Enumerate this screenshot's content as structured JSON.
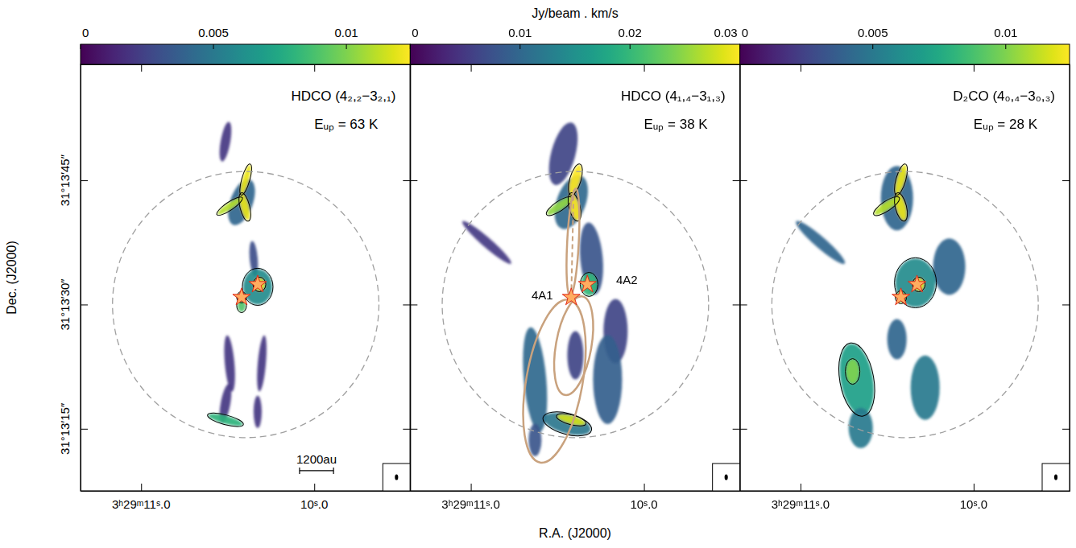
{
  "chart_data": {
    "type": "map",
    "colorbar_label": "Jy/beam . km/s",
    "xlabel": "R.A. (J2000)",
    "ylabel": "Dec. (J2000)",
    "xlim": [
      11.35,
      9.446
    ],
    "ylim": [
      7.5,
      59.0
    ],
    "xticks": [
      {
        "value": 11.0,
        "label": "3ʰ29ᵐ11ˢ.0"
      },
      {
        "value": 10.0,
        "label": "10ˢ.0"
      }
    ],
    "yticks": [
      {
        "value": 15,
        "label": "31°13′15″"
      },
      {
        "value": 30,
        "label": "31°13′30″"
      },
      {
        "value": 45,
        "label": "31°13′45″"
      }
    ],
    "field_circle": {
      "ra": 10.396,
      "dec": 30.0,
      "radius": 16.07
    },
    "sources": [
      {
        "name": "4A1",
        "ra": 10.42,
        "dec": 30.88
      },
      {
        "name": "4A2",
        "ra": 10.327,
        "dec": 32.43
      }
    ],
    "beam": {
      "major": 0.35,
      "minor": 0.2
    },
    "panels": [
      {
        "title": "HDCO (4₂,₂−3₂,₁)",
        "energy": "Eᵤₚ = 63 K",
        "colorbar": {
          "range": [
            0,
            0.0124
          ],
          "ticks": [
            0,
            0.005,
            0.01
          ]
        },
        "contour_level": 0.006,
        "scalebar": {
          "label": "1200au",
          "length": 4.1,
          "ra": 9.987,
          "dec": 9.94
        },
        "emission": [
          {
            "ra": 10.513,
            "dec": 49.67,
            "a": 2.43,
            "b": 0.58,
            "pa": -10,
            "value": 0.002
          },
          {
            "ra": 10.42,
            "dec": 42.37,
            "a": 2.92,
            "b": 1.36,
            "pa": -20,
            "value": 0.004
          },
          {
            "ra": 10.396,
            "dec": 45.09,
            "a": 1.85,
            "b": 0.39,
            "pa": -16,
            "value": 0.012
          },
          {
            "ra": 10.401,
            "dec": 41.78,
            "a": 1.66,
            "b": 0.49,
            "pa": 14,
            "value": 0.012
          },
          {
            "ra": 10.489,
            "dec": 41.88,
            "a": 1.75,
            "b": 0.39,
            "pa": -56,
            "value": 0.011
          },
          {
            "ra": 10.35,
            "dec": 35.55,
            "a": 2.14,
            "b": 0.49,
            "pa": 5,
            "value": 0.003
          },
          {
            "ra": 10.327,
            "dec": 32.14,
            "a": 2.14,
            "b": 1.75,
            "pa": 0,
            "value": 0.006
          },
          {
            "ra": 10.317,
            "dec": 32.43,
            "a": 0.78,
            "b": 0.68,
            "pa": 0,
            "value": 0.012
          },
          {
            "ra": 10.42,
            "dec": 30.88,
            "a": 0.58,
            "b": 0.49,
            "pa": 0,
            "value": 0.01
          },
          {
            "ra": 10.42,
            "dec": 29.9,
            "a": 0.78,
            "b": 0.49,
            "pa": 0,
            "value": 0.009
          },
          {
            "ra": 10.489,
            "dec": 22.89,
            "a": 3.41,
            "b": 0.58,
            "pa": 5,
            "value": 0.002
          },
          {
            "ra": 10.513,
            "dec": 18.02,
            "a": 2.43,
            "b": 0.58,
            "pa": -10,
            "value": 0.002
          },
          {
            "ra": 10.303,
            "dec": 22.89,
            "a": 3.41,
            "b": 0.49,
            "pa": -5,
            "value": 0.002
          },
          {
            "ra": 10.327,
            "dec": 17.05,
            "a": 1.95,
            "b": 0.49,
            "pa": 0,
            "value": 0.002
          },
          {
            "ra": 10.513,
            "dec": 16.08,
            "a": 2.14,
            "b": 0.49,
            "pa": 75,
            "value": 0.008
          }
        ]
      },
      {
        "title": "HDCO (4₁,₄−3₁,₃)",
        "energy": "Eᵤₚ = 38 K",
        "colorbar": {
          "range": [
            0,
            0.03
          ],
          "ticks": [
            0,
            0.01,
            0.02,
            0.03
          ]
        },
        "contour_level": 0.012,
        "annotations": [
          {
            "text": "4A1",
            "ra": 10.587,
            "dec": 31.07
          },
          {
            "text": "4A2",
            "ra": 10.099,
            "dec": 33.0
          }
        ],
        "outflow_ellipses": [
          {
            "ra": 10.517,
            "dec": 20.75,
            "a": 9.98,
            "b": 3.4,
            "pa": -10
          },
          {
            "ra": 10.406,
            "dec": 25.03,
            "a": 6.04,
            "b": 2.14,
            "pa": -10
          },
          {
            "ra": 10.41,
            "dec": 37.5,
            "a": 6.5,
            "b": 0.7,
            "pa": -3
          }
        ],
        "outflow_axis": [
          {
            "ra": 10.42,
            "dec": 30.88
          },
          {
            "ra": 10.406,
            "dec": 43.83
          }
        ],
        "emission": [
          {
            "ra": 10.466,
            "dec": 48.21,
            "a": 3.89,
            "b": 1.46,
            "pa": -15,
            "value": 0.006
          },
          {
            "ra": 10.42,
            "dec": 42.37,
            "a": 3.41,
            "b": 1.75,
            "pa": -20,
            "value": 0.01
          },
          {
            "ra": 10.396,
            "dec": 45.09,
            "a": 1.85,
            "b": 0.58,
            "pa": -16,
            "value": 0.03
          },
          {
            "ra": 10.401,
            "dec": 41.78,
            "a": 1.66,
            "b": 0.58,
            "pa": 14,
            "value": 0.03
          },
          {
            "ra": 10.489,
            "dec": 41.88,
            "a": 1.75,
            "b": 0.49,
            "pa": -56,
            "value": 0.025
          },
          {
            "ra": 10.303,
            "dec": 35.55,
            "a": 4.38,
            "b": 1.36,
            "pa": 5,
            "value": 0.008
          },
          {
            "ra": 10.908,
            "dec": 37.5,
            "a": 3.89,
            "b": 0.58,
            "pa": 49,
            "value": 0.005
          },
          {
            "ra": 10.317,
            "dec": 32.43,
            "a": 1.36,
            "b": 0.97,
            "pa": 0,
            "value": 0.02
          },
          {
            "ra": 10.164,
            "dec": 26.79,
            "a": 3.89,
            "b": 1.46,
            "pa": 0,
            "value": 0.006
          },
          {
            "ra": 10.629,
            "dec": 20.94,
            "a": 6.33,
            "b": 1.36,
            "pa": 5,
            "value": 0.01
          },
          {
            "ra": 10.21,
            "dec": 20.94,
            "a": 5.36,
            "b": 1.75,
            "pa": 0,
            "value": 0.009
          },
          {
            "ra": 10.396,
            "dec": 23.87,
            "a": 2.92,
            "b": 0.97,
            "pa": 0,
            "value": 0.006
          },
          {
            "ra": 10.443,
            "dec": 15.59,
            "a": 2.92,
            "b": 1.17,
            "pa": 75,
            "value": 0.012
          },
          {
            "ra": 10.42,
            "dec": 16.08,
            "a": 1.75,
            "b": 0.49,
            "pa": 75,
            "value": 0.028
          },
          {
            "ra": 10.629,
            "dec": 13.64,
            "a": 1.95,
            "b": 0.78,
            "pa": 0,
            "value": 0.008
          }
        ]
      },
      {
        "title": "D₂CO (4₀,₄−3₀,₃)",
        "energy": "Eᵤₚ = 28 K",
        "colorbar": {
          "range": [
            0,
            0.0124
          ],
          "ticks": [
            0,
            0.005,
            0.01
          ]
        },
        "contour_level": 0.006,
        "emission": [
          {
            "ra": 10.443,
            "dec": 42.85,
            "a": 3.89,
            "b": 1.95,
            "pa": 0,
            "value": 0.004
          },
          {
            "ra": 10.42,
            "dec": 45.09,
            "a": 1.85,
            "b": 0.49,
            "pa": -16,
            "value": 0.012
          },
          {
            "ra": 10.42,
            "dec": 41.78,
            "a": 1.66,
            "b": 0.58,
            "pa": 14,
            "value": 0.012
          },
          {
            "ra": 10.503,
            "dec": 41.88,
            "a": 1.75,
            "b": 0.49,
            "pa": -56,
            "value": 0.011
          },
          {
            "ra": 10.885,
            "dec": 37.5,
            "a": 3.89,
            "b": 0.68,
            "pa": 49,
            "value": 0.004
          },
          {
            "ra": 10.141,
            "dec": 34.58,
            "a": 3.41,
            "b": 1.95,
            "pa": 0,
            "value": 0.004
          },
          {
            "ra": 10.336,
            "dec": 32.63,
            "a": 2.92,
            "b": 2.43,
            "pa": 0,
            "value": 0.006
          },
          {
            "ra": 10.317,
            "dec": 32.43,
            "a": 0.78,
            "b": 0.68,
            "pa": 0,
            "value": 0.012
          },
          {
            "ra": 10.42,
            "dec": 30.88,
            "a": 0.68,
            "b": 0.58,
            "pa": 0,
            "value": 0.01
          },
          {
            "ra": 10.675,
            "dec": 20.94,
            "a": 4.38,
            "b": 1.95,
            "pa": 10,
            "value": 0.007
          },
          {
            "ra": 10.699,
            "dec": 21.92,
            "a": 1.46,
            "b": 0.78,
            "pa": 0,
            "value": 0.01
          },
          {
            "ra": 10.652,
            "dec": 15.1,
            "a": 2.43,
            "b": 1.46,
            "pa": 0,
            "value": 0.005
          },
          {
            "ra": 10.28,
            "dec": 19.97,
            "a": 3.89,
            "b": 1.75,
            "pa": 0,
            "value": 0.005
          },
          {
            "ra": 10.443,
            "dec": 25.81,
            "a": 2.43,
            "b": 1.17,
            "pa": 0,
            "value": 0.004
          }
        ]
      }
    ]
  }
}
